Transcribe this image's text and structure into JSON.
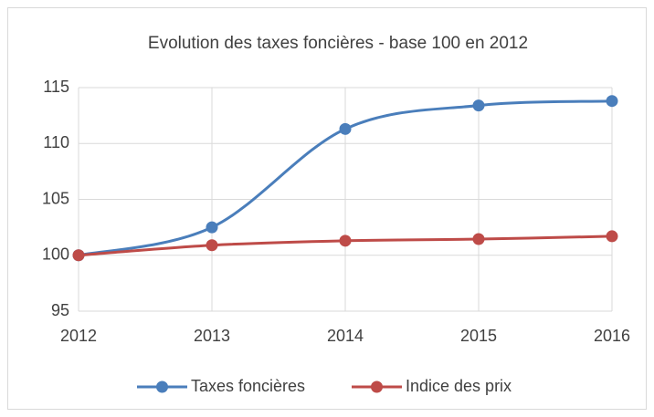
{
  "chart_data": {
    "type": "line",
    "title": "Evolution des taxes foncières - base 100 en 2012",
    "x": [
      2012,
      2013,
      2014,
      2015,
      2016
    ],
    "series": [
      {
        "name": "Taxes foncières",
        "color": "#4a7ebb",
        "values": [
          100,
          102.5,
          111.3,
          113.4,
          113.8
        ]
      },
      {
        "name": "Indice des prix",
        "color": "#be4b48",
        "values": [
          100,
          100.9,
          101.3,
          101.45,
          101.7
        ]
      }
    ],
    "xlim": [
      2012,
      2016
    ],
    "xticks": [
      2012,
      2013,
      2014,
      2015,
      2016
    ],
    "ylim": [
      95,
      115
    ],
    "yticks": [
      95,
      100,
      105,
      110,
      115
    ],
    "grid": true,
    "smooth": true,
    "legend": "bottom"
  }
}
